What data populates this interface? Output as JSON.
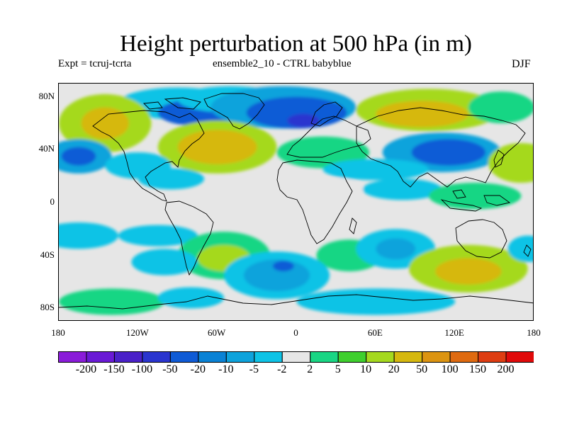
{
  "figure": {
    "title": "Height perturbation at 500 hPa (in m)",
    "subtitle_left": "Expt = tcruj-tcrta",
    "subtitle_center": "ensemble2_10 - CTRL babyblue",
    "subtitle_right": "DJF"
  },
  "map": {
    "projection": "cylindrical equidistant",
    "lon_range": [
      -180,
      180
    ],
    "lat_range": [
      -90,
      90
    ],
    "y_ticks": [
      {
        "lat": 80,
        "label": "80N"
      },
      {
        "lat": 40,
        "label": "40N"
      },
      {
        "lat": 0,
        "label": "0"
      },
      {
        "lat": -40,
        "label": "40S"
      },
      {
        "lat": -80,
        "label": "80S"
      }
    ],
    "x_ticks": [
      {
        "lon": -180,
        "label": "180"
      },
      {
        "lon": -120,
        "label": "120W"
      },
      {
        "lon": -60,
        "label": "60W"
      },
      {
        "lon": 0,
        "label": "0"
      },
      {
        "lon": 60,
        "label": "60E"
      },
      {
        "lon": 120,
        "label": "120E"
      },
      {
        "lon": 180,
        "label": "180"
      }
    ],
    "background_color": "#e6e6e6",
    "coastline_color": "#000000",
    "land_overlay_fill": "none"
  },
  "colorbar": {
    "levels": [
      "-200",
      "-150",
      "-100",
      "-50",
      "-20",
      "-10",
      "-5",
      "-2",
      "2",
      "5",
      "10",
      "20",
      "50",
      "100",
      "150",
      "200"
    ],
    "colors": [
      "#8a1cd9",
      "#6a1ad6",
      "#4a21c8",
      "#2a35cf",
      "#0f5bd6",
      "#0a82d5",
      "#0ea3dc",
      "#0ec3e6",
      "#e6e6e6",
      "#19d684",
      "#3fcf2e",
      "#a5d91f",
      "#d6b80f",
      "#dc9411",
      "#df6a10",
      "#de3d12",
      "#e00a0a"
    ]
  },
  "field_blobs": [
    {
      "lon": -90,
      "lat": 75,
      "rx": 45,
      "ry": 12,
      "color": "#0ec3e6"
    },
    {
      "lon": -75,
      "lat": 68,
      "rx": 30,
      "ry": 10,
      "color": "#0f5bd6"
    },
    {
      "lon": -50,
      "lat": 78,
      "rx": 40,
      "ry": 10,
      "color": "#0ec3e6"
    },
    {
      "lon": -10,
      "lat": 72,
      "rx": 55,
      "ry": 16,
      "color": "#0ea3dc"
    },
    {
      "lon": 0,
      "lat": 68,
      "rx": 38,
      "ry": 12,
      "color": "#0f5bd6"
    },
    {
      "lon": 5,
      "lat": 62,
      "rx": 12,
      "ry": 5,
      "color": "#2a35cf"
    },
    {
      "lon": 100,
      "lat": 70,
      "rx": 55,
      "ry": 16,
      "color": "#a5d91f"
    },
    {
      "lon": 95,
      "lat": 67,
      "rx": 35,
      "ry": 10,
      "color": "#d6b80f"
    },
    {
      "lon": 155,
      "lat": 72,
      "rx": 25,
      "ry": 12,
      "color": "#19d684"
    },
    {
      "lon": -145,
      "lat": 60,
      "rx": 35,
      "ry": 22,
      "color": "#a5d91f"
    },
    {
      "lon": -145,
      "lat": 60,
      "rx": 18,
      "ry": 12,
      "color": "#d6b80f"
    },
    {
      "lon": -60,
      "lat": 42,
      "rx": 45,
      "ry": 20,
      "color": "#a5d91f"
    },
    {
      "lon": -60,
      "lat": 42,
      "rx": 30,
      "ry": 13,
      "color": "#d6b80f"
    },
    {
      "lon": -165,
      "lat": 35,
      "rx": 25,
      "ry": 13,
      "color": "#0ea3dc"
    },
    {
      "lon": -165,
      "lat": 35,
      "rx": 13,
      "ry": 7,
      "color": "#0f5bd6"
    },
    {
      "lon": -120,
      "lat": 28,
      "rx": 25,
      "ry": 10,
      "color": "#0ec3e6"
    },
    {
      "lon": 20,
      "lat": 38,
      "rx": 35,
      "ry": 12,
      "color": "#19d684"
    },
    {
      "lon": 110,
      "lat": 38,
      "rx": 45,
      "ry": 15,
      "color": "#0ea3dc"
    },
    {
      "lon": 115,
      "lat": 38,
      "rx": 28,
      "ry": 10,
      "color": "#0f5bd6"
    },
    {
      "lon": 170,
      "lat": 30,
      "rx": 25,
      "ry": 15,
      "color": "#a5d91f"
    },
    {
      "lon": 60,
      "lat": 25,
      "rx": 40,
      "ry": 8,
      "color": "#0ec3e6"
    },
    {
      "lon": -95,
      "lat": 18,
      "rx": 25,
      "ry": 8,
      "color": "#0ec3e6"
    },
    {
      "lon": 80,
      "lat": 10,
      "rx": 30,
      "ry": 8,
      "color": "#0ec3e6"
    },
    {
      "lon": 135,
      "lat": 5,
      "rx": 35,
      "ry": 10,
      "color": "#19d684"
    },
    {
      "lon": 30,
      "lat": 10,
      "rx": 20,
      "ry": 8,
      "color": "#e6e6e6"
    },
    {
      "lon": -165,
      "lat": -25,
      "rx": 30,
      "ry": 10,
      "color": "#0ec3e6"
    },
    {
      "lon": -105,
      "lat": -25,
      "rx": 30,
      "ry": 8,
      "color": "#0ec3e6"
    },
    {
      "lon": -55,
      "lat": -40,
      "rx": 35,
      "ry": 18,
      "color": "#19d684"
    },
    {
      "lon": -55,
      "lat": -42,
      "rx": 20,
      "ry": 10,
      "color": "#a5d91f"
    },
    {
      "lon": -100,
      "lat": -45,
      "rx": 25,
      "ry": 10,
      "color": "#0ec3e6"
    },
    {
      "lon": 40,
      "lat": -40,
      "rx": 25,
      "ry": 12,
      "color": "#19d684"
    },
    {
      "lon": 75,
      "lat": -35,
      "rx": 30,
      "ry": 15,
      "color": "#0ec3e6"
    },
    {
      "lon": 75,
      "lat": -35,
      "rx": 15,
      "ry": 8,
      "color": "#0ea3dc"
    },
    {
      "lon": 130,
      "lat": -50,
      "rx": 45,
      "ry": 18,
      "color": "#a5d91f"
    },
    {
      "lon": 130,
      "lat": -52,
      "rx": 25,
      "ry": 10,
      "color": "#d6b80f"
    },
    {
      "lon": 175,
      "lat": -35,
      "rx": 15,
      "ry": 10,
      "color": "#0ec3e6"
    },
    {
      "lon": -15,
      "lat": -55,
      "rx": 40,
      "ry": 18,
      "color": "#0ec3e6"
    },
    {
      "lon": -15,
      "lat": -55,
      "rx": 25,
      "ry": 12,
      "color": "#0ea3dc"
    },
    {
      "lon": -10,
      "lat": -48,
      "rx": 8,
      "ry": 4,
      "color": "#0f5bd6"
    },
    {
      "lon": -140,
      "lat": -75,
      "rx": 40,
      "ry": 10,
      "color": "#19d684"
    },
    {
      "lon": -80,
      "lat": -72,
      "rx": 25,
      "ry": 8,
      "color": "#0ec3e6"
    },
    {
      "lon": 60,
      "lat": -75,
      "rx": 60,
      "ry": 10,
      "color": "#0ec3e6"
    }
  ]
}
